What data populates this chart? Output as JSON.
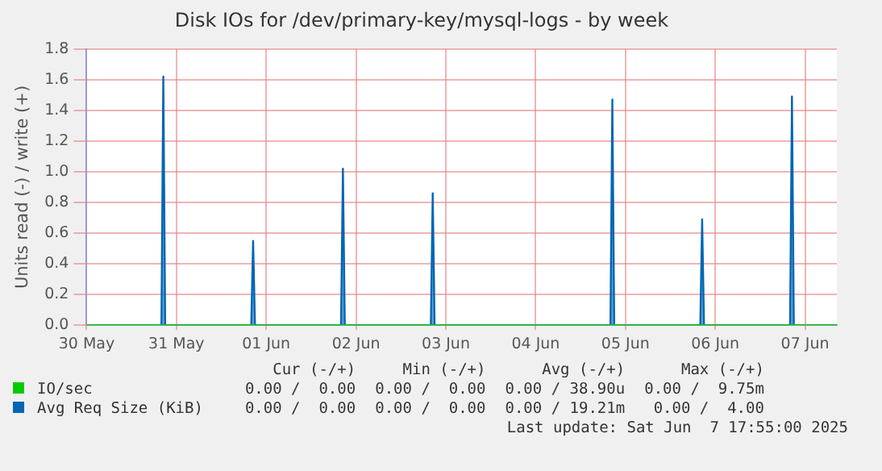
{
  "chart_data": {
    "type": "area",
    "title": "Disk IOs for /dev/primary-key/mysql-logs - by week",
    "ylabel": "Units read (-) / write (+)",
    "xlim": [
      "2025-05-30T00:00",
      "2025-06-07T08:30"
    ],
    "xticks": [
      {
        "value": "2025-05-30T00:00",
        "label": "30 May"
      },
      {
        "value": "2025-05-31T00:00",
        "label": "31 May"
      },
      {
        "value": "2025-06-01T00:00",
        "label": "01 Jun"
      },
      {
        "value": "2025-06-02T00:00",
        "label": "02 Jun"
      },
      {
        "value": "2025-06-03T00:00",
        "label": "03 Jun"
      },
      {
        "value": "2025-06-04T00:00",
        "label": "04 Jun"
      },
      {
        "value": "2025-06-05T00:00",
        "label": "05 Jun"
      },
      {
        "value": "2025-06-06T00:00",
        "label": "06 Jun"
      },
      {
        "value": "2025-06-07T00:00",
        "label": "07 Jun"
      }
    ],
    "ylim": [
      0,
      1.8
    ],
    "yticks": [
      {
        "value": 0,
        "label": "0.0"
      },
      {
        "value": 0.2,
        "label": "0.2"
      },
      {
        "value": 0.4,
        "label": "0.4"
      },
      {
        "value": 0.6,
        "label": "0.6"
      },
      {
        "value": 0.8,
        "label": "0.8"
      },
      {
        "value": 1,
        "label": "1.0"
      },
      {
        "value": 1.2,
        "label": "1.2"
      },
      {
        "value": 1.4,
        "label": "1.4"
      },
      {
        "value": 1.6,
        "label": "1.6"
      },
      {
        "value": 1.8,
        "label": "1.8"
      }
    ],
    "grid": true,
    "legend": "bottom left",
    "series": [
      {
        "name": "IO/sec",
        "color": "#00cc00",
        "type": "line",
        "x": [
          "2025-05-30T00:00",
          "2025-06-07T08:30"
        ],
        "values": [
          0,
          0
        ]
      },
      {
        "name": "Avg Req Size (KiB)",
        "color": "#0066b3",
        "x": [
          "2025-05-30T20:00",
          "2025-05-30T20:30",
          "2025-05-30T21:00",
          "2025-05-31T20:00",
          "2025-05-31T20:30",
          "2025-05-31T21:00",
          "2025-06-01T20:00",
          "2025-06-01T20:30",
          "2025-06-01T21:00",
          "2025-06-02T20:00",
          "2025-06-02T20:30",
          "2025-06-02T21:00",
          "2025-06-04T20:00",
          "2025-06-04T20:30",
          "2025-06-04T21:00",
          "2025-06-05T20:00",
          "2025-06-05T20:30",
          "2025-06-05T21:00",
          "2025-06-06T20:00",
          "2025-06-06T20:30",
          "2025-06-06T21:00"
        ],
        "values": [
          0,
          1.62,
          0,
          0,
          0.55,
          0,
          0,
          1.02,
          0,
          0,
          0.86,
          0,
          0,
          1.47,
          0,
          0,
          0.69,
          0,
          0,
          1.49,
          0
        ]
      }
    ],
    "annotations": [
      "Cur (-/+)",
      "Min (-/+)",
      "Avg (-/+)",
      "Max (-/+)",
      "0.00 /  0.00",
      "0.00 /  0.00",
      "0.00 / 38.90u",
      "0.00 /  9.75m",
      "0.00 /  0.00",
      "0.00 /  0.00",
      "0.00 / 19.21m",
      "0.00 /  4.00",
      "Last update: Sat Jun  7 17:55:00 2025"
    ]
  }
}
